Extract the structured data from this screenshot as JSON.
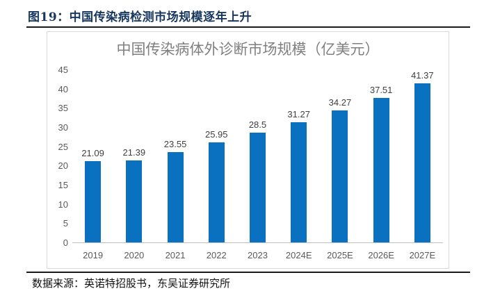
{
  "header": {
    "title": "图19：中国传染病检测市场规模逐年上升"
  },
  "footer": {
    "source": "数据来源：英诺特招股书，东吴证券研究所"
  },
  "colors": {
    "bar_blue": "#0a70c0",
    "caption_navy": "#17375e",
    "title_gray": "#7f7f7f",
    "axis_label_gray": "#595959",
    "value_label_gray": "#3f3f3f",
    "panel_border": "#d9d9d9",
    "axis_line": "#bfbfbf",
    "rule_black": "#1a1a1a"
  },
  "chart_data": {
    "type": "bar",
    "title": "中国传染病体外诊断市场规模（亿美元）",
    "xlabel": "",
    "ylabel": "",
    "categories": [
      "2019",
      "2020",
      "2021",
      "2022",
      "2023",
      "2024E",
      "2025E",
      "2026E",
      "2027E"
    ],
    "values": [
      21.09,
      21.39,
      23.55,
      25.95,
      28.5,
      31.27,
      34.27,
      37.51,
      41.37
    ],
    "value_labels": [
      "21.09",
      "21.39",
      "23.55",
      "25.95",
      "28.5",
      "31.27",
      "34.27",
      "37.51",
      "41.37"
    ],
    "ylim": [
      0,
      45
    ],
    "yticks": [
      0,
      5,
      10,
      15,
      20,
      25,
      30,
      35,
      40,
      45
    ],
    "bar_color": "#0a70c0",
    "grid": false,
    "legend": false,
    "data_labels_position": "above-bars"
  }
}
